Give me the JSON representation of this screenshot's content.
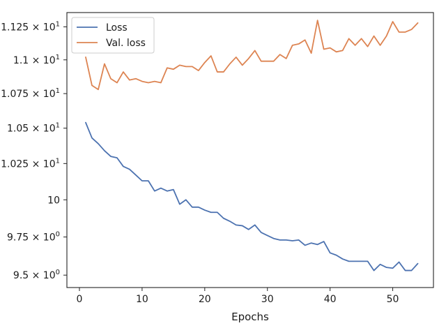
{
  "chart_data": {
    "type": "line",
    "title": "",
    "xlabel": "Epochs",
    "ylabel": "",
    "y_scale": "log",
    "xlim": [
      -2,
      56.5
    ],
    "ylim": [
      9.42,
      11.36
    ],
    "grid": false,
    "legend_placement": "top-left",
    "x_ticks": [
      0,
      10,
      20,
      30,
      40,
      50
    ],
    "x_tick_labels": [
      "0",
      "10",
      "20",
      "30",
      "40",
      "50"
    ],
    "y_ticks": [
      9.5,
      9.75,
      10,
      10.25,
      10.5,
      10.75,
      11.0,
      11.25
    ],
    "y_tick_labels": [
      {
        "mantissa": "9.5",
        "exp": "0"
      },
      {
        "mantissa": "9.75",
        "exp": "0"
      },
      {
        "mantissa": "10",
        "exp": ""
      },
      {
        "mantissa": "1.025",
        "exp": "1"
      },
      {
        "mantissa": "1.05",
        "exp": "1"
      },
      {
        "mantissa": "1.075",
        "exp": "1"
      },
      {
        "mantissa": "1.1",
        "exp": "1"
      },
      {
        "mantissa": "1.125",
        "exp": "1"
      }
    ],
    "x": [
      1,
      2,
      3,
      4,
      5,
      6,
      7,
      8,
      9,
      10,
      11,
      12,
      13,
      14,
      15,
      16,
      17,
      18,
      19,
      20,
      21,
      22,
      23,
      24,
      25,
      26,
      27,
      28,
      29,
      30,
      31,
      32,
      33,
      34,
      35,
      36,
      37,
      38,
      39,
      40,
      41,
      42,
      43,
      44,
      45,
      46,
      47,
      48,
      49,
      50,
      51,
      52,
      53,
      54
    ],
    "series": [
      {
        "name": "Loss",
        "color": "#4c72b0",
        "values": [
          10.54,
          10.43,
          10.39,
          10.34,
          10.3,
          10.29,
          10.23,
          10.21,
          10.17,
          10.13,
          10.13,
          10.06,
          10.08,
          10.06,
          10.07,
          9.97,
          10.0,
          9.95,
          9.95,
          9.93,
          9.915,
          9.915,
          9.875,
          9.855,
          9.83,
          9.825,
          9.8,
          9.83,
          9.78,
          9.76,
          9.74,
          9.73,
          9.73,
          9.725,
          9.73,
          9.695,
          9.71,
          9.7,
          9.72,
          9.645,
          9.63,
          9.605,
          9.59,
          9.59,
          9.59,
          9.59,
          9.53,
          9.57,
          9.55,
          9.545,
          9.585,
          9.53,
          9.53,
          9.575
        ]
      },
      {
        "name": "Val. loss",
        "color": "#dd8452",
        "values": [
          11.02,
          10.81,
          10.78,
          10.97,
          10.86,
          10.83,
          10.91,
          10.85,
          10.86,
          10.84,
          10.83,
          10.84,
          10.83,
          10.94,
          10.93,
          10.96,
          10.95,
          10.95,
          10.92,
          10.98,
          11.03,
          10.91,
          10.91,
          10.97,
          11.02,
          10.96,
          11.01,
          11.07,
          10.99,
          10.99,
          10.99,
          11.04,
          11.01,
          11.11,
          11.12,
          11.15,
          11.05,
          11.3,
          11.08,
          11.09,
          11.06,
          11.07,
          11.16,
          11.11,
          11.16,
          11.1,
          11.18,
          11.11,
          11.18,
          11.29,
          11.21,
          11.21,
          11.23,
          11.28
        ]
      }
    ]
  }
}
